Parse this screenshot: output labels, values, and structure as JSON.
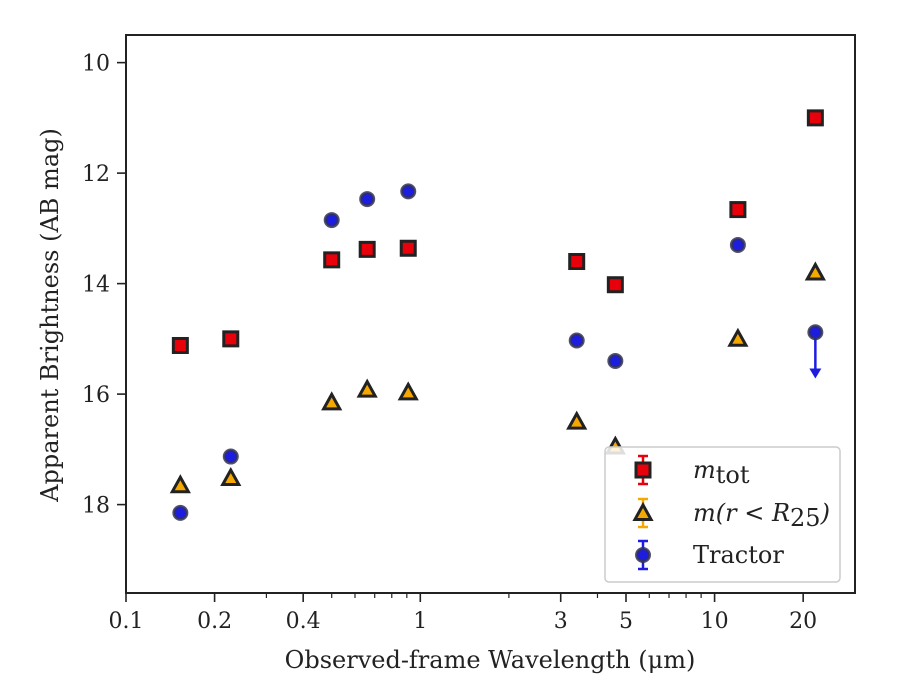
{
  "chart_data": {
    "type": "scatter",
    "xlabel": "Observed-frame Wavelength (μm)",
    "ylabel": "Apparent Brightness (AB mag)",
    "xscale": "log",
    "xlim": [
      0.1,
      30
    ],
    "ylim": [
      19.6,
      9.5
    ],
    "y_inverted": true,
    "x_ticks": [
      0.1,
      0.2,
      0.4,
      1,
      3,
      5,
      10,
      20
    ],
    "x_tick_labels": [
      "0.1",
      "0.2",
      "0.4",
      "1",
      "3",
      "5",
      "10",
      "20"
    ],
    "y_ticks": [
      10,
      12,
      14,
      16,
      18
    ],
    "y_tick_labels": [
      "10",
      "12",
      "14",
      "16",
      "18"
    ],
    "grid": false,
    "legend_placement": "lower-right",
    "series": [
      {
        "name": "m_tot",
        "marker": "square",
        "color": "#e8000b",
        "edge_color": "#222222",
        "points": [
          {
            "x": 0.153,
            "y": 15.12
          },
          {
            "x": 0.227,
            "y": 15.0
          },
          {
            "x": 0.5,
            "y": 13.57
          },
          {
            "x": 0.66,
            "y": 13.38
          },
          {
            "x": 0.91,
            "y": 13.36
          },
          {
            "x": 3.4,
            "y": 13.6
          },
          {
            "x": 4.6,
            "y": 14.02
          },
          {
            "x": 12.0,
            "y": 12.66
          },
          {
            "x": 22.0,
            "y": 11.0
          }
        ]
      },
      {
        "name": "m(r<R25)",
        "marker": "triangle",
        "color": "#f5a800",
        "edge_color": "#222222",
        "points": [
          {
            "x": 0.153,
            "y": 17.65
          },
          {
            "x": 0.227,
            "y": 17.52
          },
          {
            "x": 0.5,
            "y": 16.15
          },
          {
            "x": 0.66,
            "y": 15.92
          },
          {
            "x": 0.91,
            "y": 15.97
          },
          {
            "x": 3.4,
            "y": 16.5
          },
          {
            "x": 4.6,
            "y": 16.95
          },
          {
            "x": 12.0,
            "y": 15.0
          },
          {
            "x": 22.0,
            "y": 13.8
          }
        ]
      },
      {
        "name": "Tractor",
        "marker": "circle",
        "color": "#1d1de0",
        "edge_color": "#333355",
        "points": [
          {
            "x": 0.153,
            "y": 18.15
          },
          {
            "x": 0.227,
            "y": 17.13
          },
          {
            "x": 0.5,
            "y": 12.85
          },
          {
            "x": 0.66,
            "y": 12.47
          },
          {
            "x": 0.91,
            "y": 12.33
          },
          {
            "x": 3.4,
            "y": 15.03
          },
          {
            "x": 4.6,
            "y": 15.4
          },
          {
            "x": 12.0,
            "y": 13.3
          },
          {
            "x": 22.0,
            "y": 14.88,
            "upper_limit": true,
            "arrow_to": 15.7
          }
        ]
      }
    ],
    "legend": [
      {
        "series": "m_tot",
        "main": "m",
        "sub": "tot",
        "after": ""
      },
      {
        "series": "m(r<R25)",
        "main": "m(r < R",
        "sub": "25",
        "after": ")"
      },
      {
        "series": "Tractor",
        "main": "Tractor",
        "sub": "",
        "after": ""
      }
    ]
  }
}
